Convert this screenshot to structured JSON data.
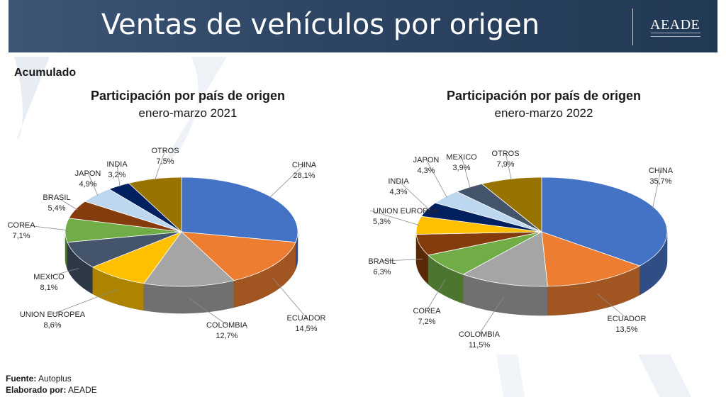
{
  "header": {
    "title": "Ventas de vehículos por origen",
    "logo": "AEADE"
  },
  "section_label": "Acumulado",
  "footer": {
    "source_label": "Fuente:",
    "source_value": "Autoplus",
    "author_label": "Elaborado por:",
    "author_value": "AEADE"
  },
  "colors": {
    "CHINA": "#4472c4",
    "ECUADOR": "#ed7d31",
    "COLOMBIA": "#a5a5a5",
    "UNION EUROPEA": "#ffc000",
    "MEXICO": "#44546a",
    "COREA": "#70ad47",
    "BRASIL": "#843c0c",
    "JAPON": "#bdd7ee",
    "INDIA": "#002060",
    "OTROS": "#997300"
  },
  "chart_data": [
    {
      "type": "pie",
      "title": "Participación por país de origen",
      "subtitle": "enero-marzo 2021",
      "categories": [
        "CHINA",
        "ECUADOR",
        "COLOMBIA",
        "UNION EUROPEA",
        "MEXICO",
        "COREA",
        "BRASIL",
        "JAPON",
        "INDIA",
        "OTROS"
      ],
      "values": [
        28.1,
        14.5,
        12.7,
        8.6,
        8.1,
        7.1,
        5.4,
        4.9,
        3.2,
        7.5
      ],
      "labels": [
        "28,1%",
        "14,5%",
        "12,7%",
        "8,6%",
        "8,1%",
        "7,1%",
        "5,4%",
        "4,9%",
        "3,2%",
        "7,5%"
      ]
    },
    {
      "type": "pie",
      "title": "Participación por país de origen",
      "subtitle": "enero-marzo 2022",
      "categories": [
        "CHINA",
        "ECUADOR",
        "COLOMBIA",
        "COREA",
        "BRASIL",
        "UNION EUROPEA",
        "INDIA",
        "JAPON",
        "MEXICO",
        "OTROS"
      ],
      "values": [
        35.7,
        13.5,
        11.5,
        7.2,
        6.3,
        5.3,
        4.3,
        4.3,
        3.9,
        7.9
      ],
      "labels": [
        "35,7%",
        "13,5%",
        "11,5%",
        "7,2%",
        "6,3%",
        "5,3%",
        "4,3%",
        "4,3%",
        "3,9%",
        "7,9%"
      ]
    }
  ]
}
